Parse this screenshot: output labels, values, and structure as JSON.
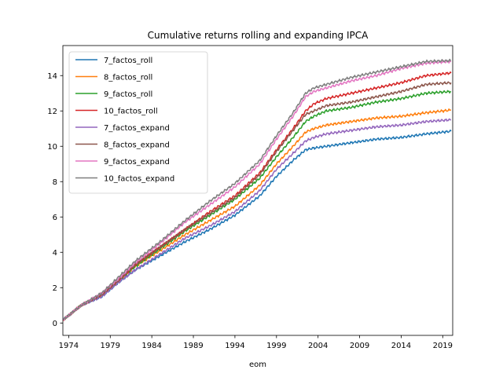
{
  "chart_data": {
    "type": "line",
    "title": "Cumulative returns rolling and expanding IPCA",
    "xlabel": "eom",
    "ylabel": "",
    "xlim": [
      1973.3,
      2020.2
    ],
    "ylim": [
      -0.7,
      15.7
    ],
    "xticks": [
      1974,
      1979,
      1984,
      1989,
      1994,
      1999,
      2004,
      2009,
      2014,
      2019
    ],
    "xtick_labels": [
      "1974",
      "1979",
      "1984",
      "1989",
      "1994",
      "1999",
      "2004",
      "2009",
      "2014",
      "2019"
    ],
    "yticks": [
      0,
      2,
      4,
      6,
      8,
      10,
      12,
      14
    ],
    "ytick_labels": [
      "0",
      "2",
      "4",
      "6",
      "8",
      "10",
      "12",
      "14"
    ],
    "grid": false,
    "legend_position": "upper-left",
    "x": [
      1973.4,
      1975.5,
      1978,
      1980,
      1982,
      1985,
      1988,
      1991,
      1994,
      1997,
      1999,
      2001,
      2002.5,
      2003.5,
      2005,
      2008,
      2011,
      2014,
      2017,
      2020
    ],
    "series": [
      {
        "name": "7_factos_roll",
        "color": "#1f77b4",
        "values": [
          0.2,
          1.0,
          1.5,
          2.3,
          3.0,
          3.8,
          4.6,
          5.3,
          6.1,
          7.2,
          8.3,
          9.2,
          9.8,
          9.9,
          10.0,
          10.2,
          10.4,
          10.5,
          10.7,
          10.85
        ]
      },
      {
        "name": "8_factos_roll",
        "color": "#ff7f0e",
        "values": [
          0.2,
          1.0,
          1.6,
          2.4,
          3.2,
          4.1,
          5.0,
          5.8,
          6.6,
          7.8,
          9.0,
          10.0,
          10.8,
          11.0,
          11.2,
          11.4,
          11.6,
          11.7,
          11.9,
          12.05
        ]
      },
      {
        "name": "9_factos_roll",
        "color": "#2ca02c",
        "values": [
          0.2,
          1.0,
          1.6,
          2.4,
          3.2,
          4.2,
          5.2,
          6.1,
          7.0,
          8.2,
          9.4,
          10.5,
          11.4,
          11.7,
          12.0,
          12.2,
          12.5,
          12.7,
          13.0,
          13.1
        ]
      },
      {
        "name": "10_factos_roll",
        "color": "#d62728",
        "values": [
          0.2,
          1.0,
          1.6,
          2.4,
          3.3,
          4.3,
          5.3,
          6.3,
          7.2,
          8.5,
          9.8,
          11.0,
          12.0,
          12.4,
          12.7,
          13.0,
          13.3,
          13.6,
          14.0,
          14.15
        ]
      },
      {
        "name": "7_factos_expand",
        "color": "#9467bd",
        "values": [
          0.2,
          1.0,
          1.5,
          2.3,
          3.0,
          3.9,
          4.8,
          5.5,
          6.3,
          7.5,
          8.7,
          9.6,
          10.3,
          10.5,
          10.7,
          10.9,
          11.1,
          11.2,
          11.4,
          11.5
        ]
      },
      {
        "name": "8_factos_expand",
        "color": "#8c564b",
        "values": [
          0.2,
          1.0,
          1.6,
          2.4,
          3.3,
          4.3,
          5.3,
          6.2,
          7.1,
          8.4,
          9.7,
          10.9,
          11.8,
          12.0,
          12.3,
          12.5,
          12.8,
          13.1,
          13.5,
          13.6
        ]
      },
      {
        "name": "9_factos_expand",
        "color": "#e377c2",
        "values": [
          0.2,
          1.0,
          1.7,
          2.5,
          3.4,
          4.5,
          5.7,
          6.7,
          7.7,
          9.0,
          10.4,
          11.7,
          12.8,
          13.1,
          13.3,
          13.7,
          14.0,
          14.4,
          14.7,
          14.8
        ]
      },
      {
        "name": "10_factos_expand",
        "color": "#7f7f7f",
        "values": [
          0.2,
          1.0,
          1.7,
          2.6,
          3.5,
          4.6,
          5.8,
          6.9,
          7.9,
          9.2,
          10.6,
          11.9,
          13.0,
          13.3,
          13.5,
          13.9,
          14.2,
          14.5,
          14.8,
          14.85
        ]
      }
    ]
  }
}
